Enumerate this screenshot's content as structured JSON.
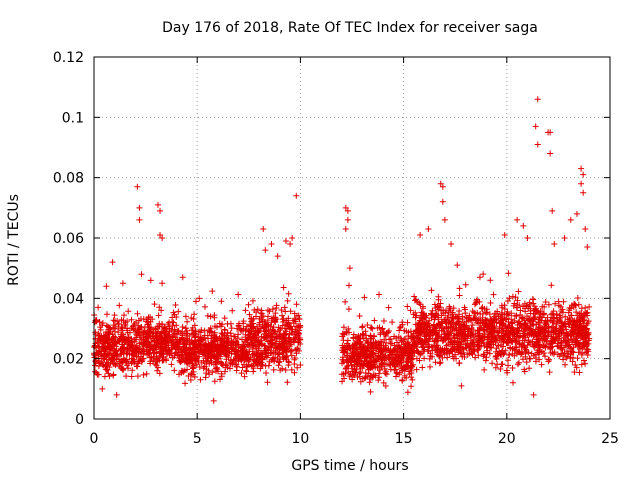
{
  "chart_data": {
    "type": "scatter",
    "title": "Day 176 of 2018, Rate Of TEC Index for receiver saga",
    "xlabel": "GPS time / hours",
    "ylabel": "ROTI / TECUs",
    "xlim": [
      0,
      25
    ],
    "ylim": [
      0,
      0.12
    ],
    "xticks": [
      "0",
      "5",
      "10",
      "15",
      "20",
      "25"
    ],
    "yticks": [
      "0",
      "0.02",
      "0.04",
      "0.06",
      "0.08",
      "0.1",
      "0.12"
    ],
    "grid": true,
    "marker": "+",
    "color": "#e00000",
    "data_gap_hours": [
      10.0,
      12.0
    ],
    "series": [
      {
        "name": "ROTI",
        "density_profile": [
          {
            "t0": 0.0,
            "t1": 2.0,
            "low": 0.012,
            "high": 0.036
          },
          {
            "t0": 2.0,
            "t1": 4.0,
            "low": 0.014,
            "high": 0.036
          },
          {
            "t0": 4.0,
            "t1": 7.5,
            "low": 0.012,
            "high": 0.034
          },
          {
            "t0": 7.5,
            "t1": 10.0,
            "low": 0.012,
            "high": 0.04
          },
          {
            "t0": 12.0,
            "t1": 15.5,
            "low": 0.01,
            "high": 0.032
          },
          {
            "t0": 15.5,
            "t1": 19.6,
            "low": 0.016,
            "high": 0.04
          },
          {
            "t0": 19.6,
            "t1": 24.0,
            "low": 0.014,
            "high": 0.042
          }
        ],
        "notable_points": [
          {
            "x": 0.2,
            "y": 0.037
          },
          {
            "x": 0.6,
            "y": 0.044
          },
          {
            "x": 0.9,
            "y": 0.052
          },
          {
            "x": 1.4,
            "y": 0.045
          },
          {
            "x": 2.1,
            "y": 0.077
          },
          {
            "x": 2.2,
            "y": 0.07
          },
          {
            "x": 2.2,
            "y": 0.066
          },
          {
            "x": 2.3,
            "y": 0.048
          },
          {
            "x": 3.1,
            "y": 0.071
          },
          {
            "x": 3.2,
            "y": 0.069
          },
          {
            "x": 3.2,
            "y": 0.061
          },
          {
            "x": 3.3,
            "y": 0.06
          },
          {
            "x": 3.3,
            "y": 0.045
          },
          {
            "x": 4.3,
            "y": 0.047
          },
          {
            "x": 5.1,
            "y": 0.04
          },
          {
            "x": 8.2,
            "y": 0.063
          },
          {
            "x": 8.3,
            "y": 0.056
          },
          {
            "x": 8.6,
            "y": 0.058
          },
          {
            "x": 8.9,
            "y": 0.054
          },
          {
            "x": 9.3,
            "y": 0.059
          },
          {
            "x": 9.5,
            "y": 0.058
          },
          {
            "x": 9.8,
            "y": 0.074
          },
          {
            "x": 9.6,
            "y": 0.06
          },
          {
            "x": 12.2,
            "y": 0.07
          },
          {
            "x": 12.3,
            "y": 0.069
          },
          {
            "x": 12.3,
            "y": 0.066
          },
          {
            "x": 12.2,
            "y": 0.063
          },
          {
            "x": 12.4,
            "y": 0.05
          },
          {
            "x": 15.8,
            "y": 0.061
          },
          {
            "x": 16.2,
            "y": 0.063
          },
          {
            "x": 16.8,
            "y": 0.078
          },
          {
            "x": 16.9,
            "y": 0.077
          },
          {
            "x": 16.9,
            "y": 0.072
          },
          {
            "x": 17.0,
            "y": 0.066
          },
          {
            "x": 17.3,
            "y": 0.058
          },
          {
            "x": 17.6,
            "y": 0.051
          },
          {
            "x": 18.7,
            "y": 0.047
          },
          {
            "x": 19.2,
            "y": 0.046
          },
          {
            "x": 19.9,
            "y": 0.061
          },
          {
            "x": 20.5,
            "y": 0.066
          },
          {
            "x": 20.8,
            "y": 0.064
          },
          {
            "x": 21.0,
            "y": 0.06
          },
          {
            "x": 21.5,
            "y": 0.106
          },
          {
            "x": 21.4,
            "y": 0.097
          },
          {
            "x": 21.5,
            "y": 0.091
          },
          {
            "x": 22.0,
            "y": 0.095
          },
          {
            "x": 22.1,
            "y": 0.095
          },
          {
            "x": 22.1,
            "y": 0.088
          },
          {
            "x": 22.2,
            "y": 0.069
          },
          {
            "x": 22.3,
            "y": 0.058
          },
          {
            "x": 22.8,
            "y": 0.06
          },
          {
            "x": 23.1,
            "y": 0.066
          },
          {
            "x": 23.4,
            "y": 0.068
          },
          {
            "x": 23.6,
            "y": 0.083
          },
          {
            "x": 23.7,
            "y": 0.081
          },
          {
            "x": 23.6,
            "y": 0.078
          },
          {
            "x": 23.7,
            "y": 0.075
          },
          {
            "x": 23.8,
            "y": 0.063
          },
          {
            "x": 23.9,
            "y": 0.057
          },
          {
            "x": 21.3,
            "y": 0.008
          },
          {
            "x": 5.8,
            "y": 0.006
          },
          {
            "x": 1.1,
            "y": 0.008
          },
          {
            "x": 0.4,
            "y": 0.01
          },
          {
            "x": 13.4,
            "y": 0.009
          },
          {
            "x": 17.8,
            "y": 0.011
          },
          {
            "x": 20.3,
            "y": 0.012
          }
        ],
        "typical_range": [
          0.012,
          0.04
        ],
        "max": 0.106,
        "min": 0.006
      }
    ]
  }
}
